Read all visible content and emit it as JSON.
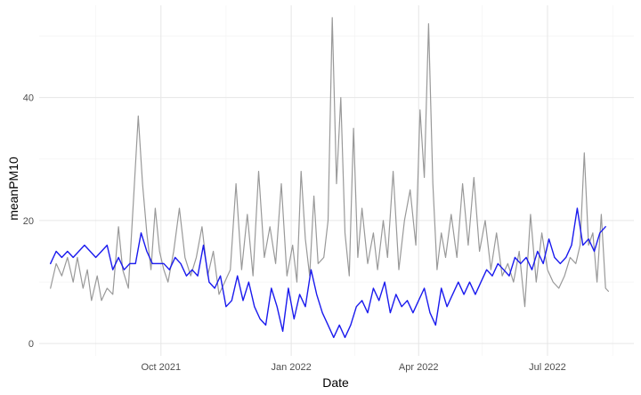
{
  "chart_data": {
    "type": "line",
    "xlabel": "Date",
    "ylabel": "meanPM10",
    "xlim": [
      "2021-07-07",
      "2022-08-31"
    ],
    "ylim": [
      -2,
      55
    ],
    "grid": true,
    "legend": "none",
    "x_ticks": [
      {
        "date": "2021-10-01",
        "label": "Oct 2021"
      },
      {
        "date": "2022-01-01",
        "label": "Jan 2022"
      },
      {
        "date": "2022-04-01",
        "label": "Apr 2022"
      },
      {
        "date": "2022-07-01",
        "label": "Jul 2022"
      }
    ],
    "x_minor_ticks": [
      "2021-08-16",
      "2021-11-16",
      "2022-02-15",
      "2022-05-16",
      "2022-08-16"
    ],
    "y_ticks": [
      0,
      20,
      40
    ],
    "y_minor_ticks": [
      10,
      30,
      50
    ],
    "series": [
      {
        "color": "#999999",
        "points": [
          [
            "2021-07-15",
            9
          ],
          [
            "2021-07-19",
            13
          ],
          [
            "2021-07-23",
            11
          ],
          [
            "2021-07-27",
            14
          ],
          [
            "2021-07-31",
            10
          ],
          [
            "2021-08-03",
            14
          ],
          [
            "2021-08-07",
            9
          ],
          [
            "2021-08-10",
            12
          ],
          [
            "2021-08-13",
            7
          ],
          [
            "2021-08-17",
            11
          ],
          [
            "2021-08-20",
            7
          ],
          [
            "2021-08-24",
            9
          ],
          [
            "2021-08-28",
            8
          ],
          [
            "2021-09-01",
            19
          ],
          [
            "2021-09-04",
            12
          ],
          [
            "2021-09-08",
            9
          ],
          [
            "2021-09-12",
            25
          ],
          [
            "2021-09-15",
            37
          ],
          [
            "2021-09-18",
            26
          ],
          [
            "2021-09-21",
            18
          ],
          [
            "2021-09-24",
            12
          ],
          [
            "2021-09-27",
            22
          ],
          [
            "2021-09-30",
            15
          ],
          [
            "2021-10-03",
            12
          ],
          [
            "2021-10-06",
            10
          ],
          [
            "2021-10-10",
            15
          ],
          [
            "2021-10-14",
            22
          ],
          [
            "2021-10-18",
            14
          ],
          [
            "2021-10-22",
            11
          ],
          [
            "2021-10-26",
            14
          ],
          [
            "2021-10-30",
            19
          ],
          [
            "2021-11-03",
            11
          ],
          [
            "2021-11-07",
            15
          ],
          [
            "2021-11-11",
            8
          ],
          [
            "2021-11-15",
            10
          ],
          [
            "2021-11-19",
            12
          ],
          [
            "2021-11-23",
            26
          ],
          [
            "2021-11-27",
            12
          ],
          [
            "2021-12-01",
            21
          ],
          [
            "2021-12-05",
            11
          ],
          [
            "2021-12-09",
            28
          ],
          [
            "2021-12-13",
            14
          ],
          [
            "2021-12-17",
            19
          ],
          [
            "2021-12-21",
            13
          ],
          [
            "2021-12-25",
            26
          ],
          [
            "2021-12-29",
            11
          ],
          [
            "2022-01-02",
            16
          ],
          [
            "2022-01-05",
            10
          ],
          [
            "2022-01-08",
            28
          ],
          [
            "2022-01-11",
            17
          ],
          [
            "2022-01-14",
            11
          ],
          [
            "2022-01-17",
            24
          ],
          [
            "2022-01-20",
            13
          ],
          [
            "2022-01-24",
            14
          ],
          [
            "2022-01-27",
            20
          ],
          [
            "2022-01-30",
            53
          ],
          [
            "2022-02-02",
            26
          ],
          [
            "2022-02-05",
            40
          ],
          [
            "2022-02-08",
            18
          ],
          [
            "2022-02-11",
            11
          ],
          [
            "2022-02-14",
            35
          ],
          [
            "2022-02-17",
            14
          ],
          [
            "2022-02-20",
            22
          ],
          [
            "2022-02-24",
            13
          ],
          [
            "2022-02-28",
            18
          ],
          [
            "2022-03-03",
            12
          ],
          [
            "2022-03-07",
            20
          ],
          [
            "2022-03-10",
            14
          ],
          [
            "2022-03-14",
            28
          ],
          [
            "2022-03-18",
            12
          ],
          [
            "2022-03-22",
            20
          ],
          [
            "2022-03-26",
            25
          ],
          [
            "2022-03-30",
            16
          ],
          [
            "2022-04-02",
            38
          ],
          [
            "2022-04-05",
            27
          ],
          [
            "2022-04-08",
            52
          ],
          [
            "2022-04-11",
            26
          ],
          [
            "2022-04-14",
            12
          ],
          [
            "2022-04-17",
            18
          ],
          [
            "2022-04-20",
            14
          ],
          [
            "2022-04-24",
            21
          ],
          [
            "2022-04-28",
            14
          ],
          [
            "2022-05-02",
            26
          ],
          [
            "2022-05-06",
            16
          ],
          [
            "2022-05-10",
            27
          ],
          [
            "2022-05-14",
            15
          ],
          [
            "2022-05-18",
            20
          ],
          [
            "2022-05-22",
            12
          ],
          [
            "2022-05-26",
            18
          ],
          [
            "2022-05-30",
            11
          ],
          [
            "2022-06-03",
            13
          ],
          [
            "2022-06-07",
            10
          ],
          [
            "2022-06-11",
            15
          ],
          [
            "2022-06-15",
            6
          ],
          [
            "2022-06-19",
            21
          ],
          [
            "2022-06-23",
            10
          ],
          [
            "2022-06-27",
            18
          ],
          [
            "2022-07-01",
            12
          ],
          [
            "2022-07-05",
            10
          ],
          [
            "2022-07-09",
            9
          ],
          [
            "2022-07-13",
            11
          ],
          [
            "2022-07-17",
            14
          ],
          [
            "2022-07-21",
            13
          ],
          [
            "2022-07-24",
            16
          ],
          [
            "2022-07-27",
            31
          ],
          [
            "2022-07-30",
            16
          ],
          [
            "2022-08-02",
            18
          ],
          [
            "2022-08-05",
            10
          ],
          [
            "2022-08-08",
            21
          ],
          [
            "2022-08-11",
            9
          ],
          [
            "2022-08-13",
            8.5
          ]
        ]
      },
      {
        "color": "#1a1aee",
        "points": [
          [
            "2021-07-15",
            13
          ],
          [
            "2021-07-19",
            15
          ],
          [
            "2021-07-23",
            14
          ],
          [
            "2021-07-27",
            15
          ],
          [
            "2021-07-31",
            14
          ],
          [
            "2021-08-04",
            15
          ],
          [
            "2021-08-08",
            16
          ],
          [
            "2021-08-12",
            15
          ],
          [
            "2021-08-16",
            14
          ],
          [
            "2021-08-20",
            15
          ],
          [
            "2021-08-24",
            16
          ],
          [
            "2021-08-28",
            12
          ],
          [
            "2021-09-01",
            14
          ],
          [
            "2021-09-05",
            12
          ],
          [
            "2021-09-09",
            13
          ],
          [
            "2021-09-13",
            13
          ],
          [
            "2021-09-17",
            18
          ],
          [
            "2021-09-21",
            15
          ],
          [
            "2021-09-25",
            13
          ],
          [
            "2021-09-29",
            13
          ],
          [
            "2021-10-03",
            13
          ],
          [
            "2021-10-07",
            12
          ],
          [
            "2021-10-11",
            14
          ],
          [
            "2021-10-15",
            13
          ],
          [
            "2021-10-19",
            11
          ],
          [
            "2021-10-23",
            12
          ],
          [
            "2021-10-27",
            11
          ],
          [
            "2021-10-31",
            16
          ],
          [
            "2021-11-04",
            10
          ],
          [
            "2021-11-08",
            9
          ],
          [
            "2021-11-12",
            11
          ],
          [
            "2021-11-16",
            6
          ],
          [
            "2021-11-20",
            7
          ],
          [
            "2021-11-24",
            11
          ],
          [
            "2021-11-28",
            7
          ],
          [
            "2021-12-02",
            10
          ],
          [
            "2021-12-06",
            6
          ],
          [
            "2021-12-10",
            4
          ],
          [
            "2021-12-14",
            3
          ],
          [
            "2021-12-18",
            9
          ],
          [
            "2021-12-22",
            6
          ],
          [
            "2021-12-26",
            2
          ],
          [
            "2021-12-30",
            9
          ],
          [
            "2022-01-03",
            4
          ],
          [
            "2022-01-07",
            8
          ],
          [
            "2022-01-11",
            6
          ],
          [
            "2022-01-15",
            12
          ],
          [
            "2022-01-19",
            8
          ],
          [
            "2022-01-23",
            5
          ],
          [
            "2022-01-27",
            3
          ],
          [
            "2022-01-31",
            1
          ],
          [
            "2022-02-04",
            3
          ],
          [
            "2022-02-08",
            1
          ],
          [
            "2022-02-12",
            3
          ],
          [
            "2022-02-16",
            6
          ],
          [
            "2022-02-20",
            7
          ],
          [
            "2022-02-24",
            5
          ],
          [
            "2022-02-28",
            9
          ],
          [
            "2022-03-04",
            7
          ],
          [
            "2022-03-08",
            10
          ],
          [
            "2022-03-12",
            5
          ],
          [
            "2022-03-16",
            8
          ],
          [
            "2022-03-20",
            6
          ],
          [
            "2022-03-24",
            7
          ],
          [
            "2022-03-28",
            5
          ],
          [
            "2022-04-01",
            7
          ],
          [
            "2022-04-05",
            9
          ],
          [
            "2022-04-09",
            5
          ],
          [
            "2022-04-13",
            3
          ],
          [
            "2022-04-17",
            9
          ],
          [
            "2022-04-21",
            6
          ],
          [
            "2022-04-25",
            8
          ],
          [
            "2022-04-29",
            10
          ],
          [
            "2022-05-03",
            8
          ],
          [
            "2022-05-07",
            10
          ],
          [
            "2022-05-11",
            8
          ],
          [
            "2022-05-15",
            10
          ],
          [
            "2022-05-19",
            12
          ],
          [
            "2022-05-23",
            11
          ],
          [
            "2022-05-27",
            13
          ],
          [
            "2022-05-31",
            12
          ],
          [
            "2022-06-04",
            11
          ],
          [
            "2022-06-08",
            14
          ],
          [
            "2022-06-12",
            13
          ],
          [
            "2022-06-16",
            14
          ],
          [
            "2022-06-20",
            12
          ],
          [
            "2022-06-24",
            15
          ],
          [
            "2022-06-28",
            13
          ],
          [
            "2022-07-02",
            17
          ],
          [
            "2022-07-06",
            14
          ],
          [
            "2022-07-10",
            13
          ],
          [
            "2022-07-14",
            14
          ],
          [
            "2022-07-18",
            16
          ],
          [
            "2022-07-22",
            22
          ],
          [
            "2022-07-26",
            16
          ],
          [
            "2022-07-30",
            17
          ],
          [
            "2022-08-03",
            15
          ],
          [
            "2022-08-07",
            18
          ],
          [
            "2022-08-11",
            19
          ]
        ]
      }
    ]
  }
}
